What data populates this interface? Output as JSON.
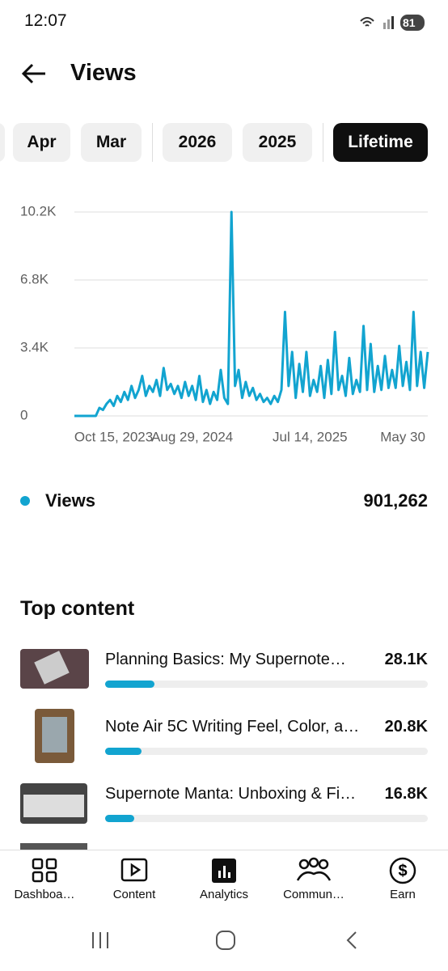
{
  "status": {
    "time": "12:07",
    "battery": "81"
  },
  "header": {
    "title": "Views"
  },
  "chips": [
    "Apr",
    "Mar",
    "2026",
    "2025",
    "Lifetime"
  ],
  "chart_data": {
    "type": "line",
    "series": [
      {
        "name": "Views",
        "color": "#12a4d0",
        "values": [
          0,
          0,
          0,
          0,
          0,
          0,
          0,
          400,
          300,
          600,
          800,
          500,
          1000,
          700,
          1200,
          800,
          1500,
          900,
          1300,
          2000,
          1000,
          1500,
          1200,
          1800,
          1000,
          2400,
          1300,
          1600,
          1100,
          1500,
          900,
          1700,
          1000,
          1500,
          800,
          2000,
          700,
          1300,
          600,
          1200,
          800,
          2300,
          900,
          600,
          10200,
          1500,
          2300,
          900,
          1700,
          1000,
          1400,
          800,
          1100,
          700,
          900,
          600,
          1000,
          700,
          1300,
          5200,
          1500,
          3200,
          900,
          2600,
          1200,
          3200,
          1000,
          1800,
          1200,
          2500,
          900,
          2800,
          1100,
          4200,
          1300,
          2000,
          1000,
          2900,
          1100,
          1800,
          1200,
          4500,
          1300,
          3600,
          1200,
          2500,
          1300,
          3000,
          1400,
          2300,
          1400,
          3500,
          1500,
          2700,
          1300,
          5200,
          1500,
          3200,
          1400,
          3200
        ]
      }
    ],
    "ylim": [
      0,
      10200
    ],
    "yticks": [
      {
        "value": 10200,
        "label": "10.2K"
      },
      {
        "value": 6800,
        "label": "6.8K"
      },
      {
        "value": 3400,
        "label": "3.4K"
      },
      0
    ],
    "xlim": [
      0,
      99
    ],
    "xticks": [
      {
        "value": 11,
        "label": "Oct 15, 2023"
      },
      {
        "value": 33,
        "label": "Aug 29, 2024"
      },
      {
        "value": 66,
        "label": "Jul 14, 2025"
      },
      {
        "value": 92,
        "label": "May 30"
      }
    ],
    "grid": true,
    "total": "901,262"
  },
  "top_content": {
    "title": "Top content",
    "items": [
      {
        "title": "Planning Basics: My Supernote…",
        "value": 28100,
        "value_label": "28.1K"
      },
      {
        "title": "Note Air 5C Writing Feel, Color, a…",
        "value": 20800,
        "value_label": "20.8K"
      },
      {
        "title": "Supernote Manta: Unboxing & Fi…",
        "value": 16800,
        "value_label": "16.8K"
      }
    ]
  },
  "nav": [
    "Dashboa…",
    "Content",
    "Analytics",
    "Commun…",
    "Earn"
  ]
}
